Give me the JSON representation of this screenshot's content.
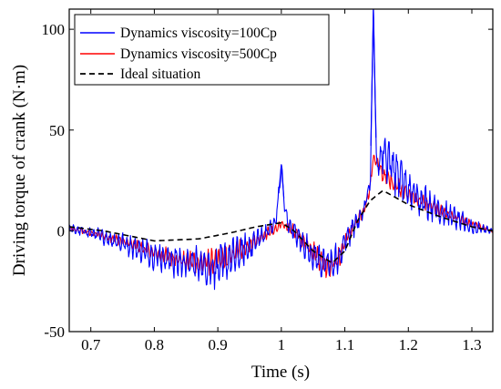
{
  "chart_data": {
    "type": "line",
    "xlabel": "Time (s)",
    "ylabel": "Driving torque of crank (N·m)",
    "xlim": [
      0.666,
      1.333
    ],
    "ylim": [
      -50,
      110
    ],
    "x_ticks": [
      0.7,
      0.8,
      0.9,
      1.0,
      1.1,
      1.2,
      1.3
    ],
    "x_tick_labels": [
      "0.7",
      "0.8",
      "0.9",
      "1",
      "1.1",
      "1.2",
      "1.3"
    ],
    "y_ticks": [
      -50,
      0,
      50,
      100
    ],
    "y_tick_labels": [
      "-50",
      "0",
      "50",
      "100"
    ],
    "grid": false,
    "legend_position": "top-left",
    "series": [
      {
        "name": "Dynamics viscosity=100Cp",
        "color": "#0000ff",
        "style": "solid",
        "x": [
          0.666,
          0.7,
          0.75,
          0.8,
          0.85,
          0.9,
          0.95,
          0.99,
          0.995,
          1.0,
          1.005,
          1.01,
          1.03,
          1.05,
          1.07,
          1.09,
          1.1,
          1.12,
          1.13,
          1.14,
          1.145,
          1.15,
          1.16,
          1.18,
          1.2,
          1.25,
          1.3,
          1.333
        ],
        "y": [
          1,
          -1,
          -6,
          -12,
          -16,
          -18,
          -8,
          3,
          15,
          33,
          12,
          4,
          -5,
          -12,
          -17,
          -15,
          -5,
          5,
          10,
          25,
          111,
          30,
          40,
          30,
          20,
          10,
          2,
          0
        ],
        "noise_amplitude": [
          2,
          3,
          5,
          7,
          9,
          11,
          8,
          4,
          4,
          4,
          4,
          4,
          6,
          8,
          9,
          9,
          7,
          6,
          5,
          5,
          0,
          10,
          13,
          12,
          10,
          7,
          4,
          1
        ]
      },
      {
        "name": "Dynamics viscosity=500Cp",
        "color": "#ff0000",
        "style": "solid",
        "x": [
          0.666,
          0.7,
          0.75,
          0.8,
          0.85,
          0.9,
          0.95,
          1.0,
          1.02,
          1.05,
          1.07,
          1.09,
          1.1,
          1.13,
          1.14,
          1.145,
          1.16,
          1.2,
          1.25,
          1.3,
          1.333
        ],
        "y": [
          1,
          -1,
          -5,
          -11,
          -15,
          -16,
          -7,
          3,
          0,
          -10,
          -17,
          -15,
          -5,
          10,
          22,
          37,
          28,
          18,
          10,
          3,
          0
        ],
        "noise_amplitude": [
          1,
          1.5,
          2.5,
          3.5,
          5,
          7,
          5,
          2,
          3,
          5,
          6,
          6,
          4,
          3,
          3,
          2,
          5,
          4,
          3,
          2,
          1
        ]
      },
      {
        "name": "Ideal situation",
        "color": "#000000",
        "style": "dashed",
        "x": [
          0.666,
          0.72,
          0.8,
          0.87,
          0.92,
          0.96,
          1.0,
          1.02,
          1.05,
          1.08,
          1.1,
          1.12,
          1.14,
          1.16,
          1.2,
          1.25,
          1.3,
          1.333
        ],
        "y": [
          2,
          0,
          -5,
          -4,
          -1,
          2,
          4,
          0,
          -10,
          -16,
          -10,
          5,
          15,
          20,
          13,
          7,
          2,
          0
        ],
        "noise_amplitude": []
      }
    ]
  }
}
